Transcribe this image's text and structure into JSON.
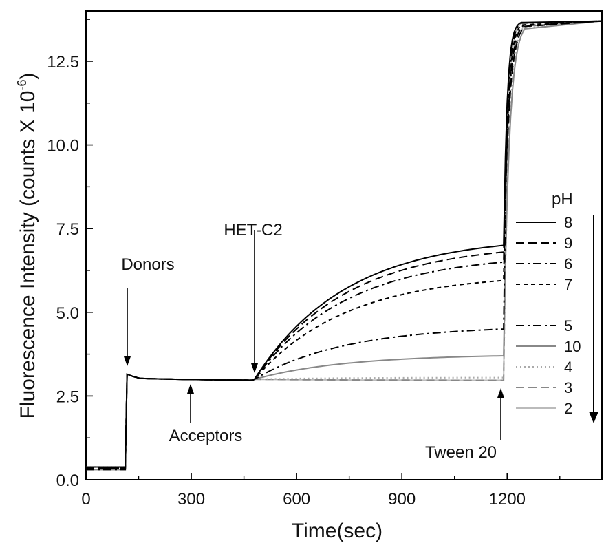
{
  "chart_data": {
    "type": "line",
    "xlabel": "Time(sec)",
    "ylabel": "Fluorescence Intensity (counts X 10",
    "ylabel_sup": "-6",
    "ylabel_close": ")",
    "xlim": [
      0,
      1470
    ],
    "ylim": [
      0,
      14
    ],
    "xticks": [
      0,
      300,
      600,
      900,
      1200
    ],
    "xtick_labels": [
      "0",
      "300",
      "600",
      "900",
      "1200"
    ],
    "yticks": [
      0.0,
      2.5,
      5.0,
      7.5,
      10.0,
      12.5
    ],
    "ytick_labels": [
      "0.0",
      "2.5",
      "5.0",
      "7.5",
      "10.0",
      "12.5"
    ],
    "grid": false,
    "legend": {
      "title": "pH",
      "placement": "right",
      "arrow": "down"
    },
    "annotations": [
      {
        "text": "Donors",
        "x": 120,
        "y": 3.2
      },
      {
        "text": "Acceptors",
        "x": 300,
        "y": 2.95
      },
      {
        "text": "HET-C2",
        "x": 485,
        "y": 3.0
      },
      {
        "text": "Tween 20",
        "x": 1190,
        "y": 3.0
      }
    ],
    "series": [
      {
        "name": "8",
        "style": "solid",
        "color": "#000000",
        "plateau_end": 7.0
      },
      {
        "name": "9",
        "style": "dashed",
        "color": "#000000",
        "plateau_end": 6.8
      },
      {
        "name": "6",
        "style": "dashdot",
        "color": "#000000",
        "plateau_end": 6.5
      },
      {
        "name": "7",
        "style": "shortdash",
        "color": "#000000",
        "plateau_end": 5.95
      },
      {
        "name": "5",
        "style": "dashdot",
        "color": "#000000",
        "plateau_end": 4.5
      },
      {
        "name": "10",
        "style": "solid",
        "color": "#888888",
        "plateau_end": 3.7
      },
      {
        "name": "4",
        "style": "dotted",
        "color": "#aaaaaa",
        "plateau_end": 3.05
      },
      {
        "name": "3",
        "style": "dashed",
        "color": "#888888",
        "plateau_end": 2.97
      },
      {
        "name": "2",
        "style": "solid",
        "color": "#bbbbbb",
        "plateau_end": 2.97
      }
    ],
    "baseline_before_donors": 0.3,
    "level_after_donors": 3.0,
    "final_plateau": 13.7,
    "x_donors": 115,
    "x_hetc2": 480,
    "x_tween": 1190
  }
}
